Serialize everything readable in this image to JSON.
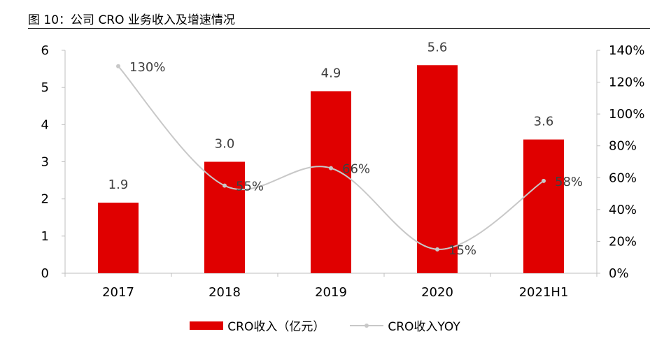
{
  "figure": {
    "title": "图 10：公司 CRO 业务收入及增速情况"
  },
  "colors": {
    "bar": "#e00000",
    "line": "#c8c8c8"
  },
  "chart_data": {
    "type": "bar",
    "categories": [
      "2017",
      "2018",
      "2019",
      "2020",
      "2021H1"
    ],
    "series": [
      {
        "name": "CRO收入（亿元）",
        "type": "bar",
        "axis": "left",
        "values": [
          1.9,
          3.0,
          4.9,
          5.6,
          3.6
        ],
        "labels": [
          "1.9",
          "3.0",
          "4.9",
          "5.6",
          "3.6"
        ]
      },
      {
        "name": "CRO收入YOY",
        "type": "line",
        "axis": "right",
        "values": [
          130,
          55,
          66,
          15,
          58
        ],
        "labels": [
          "130%",
          "55%",
          "66%",
          "15%",
          "58%"
        ]
      }
    ],
    "y_left": {
      "lim": [
        0,
        6
      ],
      "ticks": [
        "0",
        "1",
        "2",
        "3",
        "4",
        "5",
        "6"
      ]
    },
    "y_right": {
      "lim": [
        0,
        140
      ],
      "ticks": [
        "0%",
        "20%",
        "40%",
        "60%",
        "80%",
        "100%",
        "120%",
        "140%"
      ]
    },
    "grid": false,
    "legend": "bottom"
  }
}
